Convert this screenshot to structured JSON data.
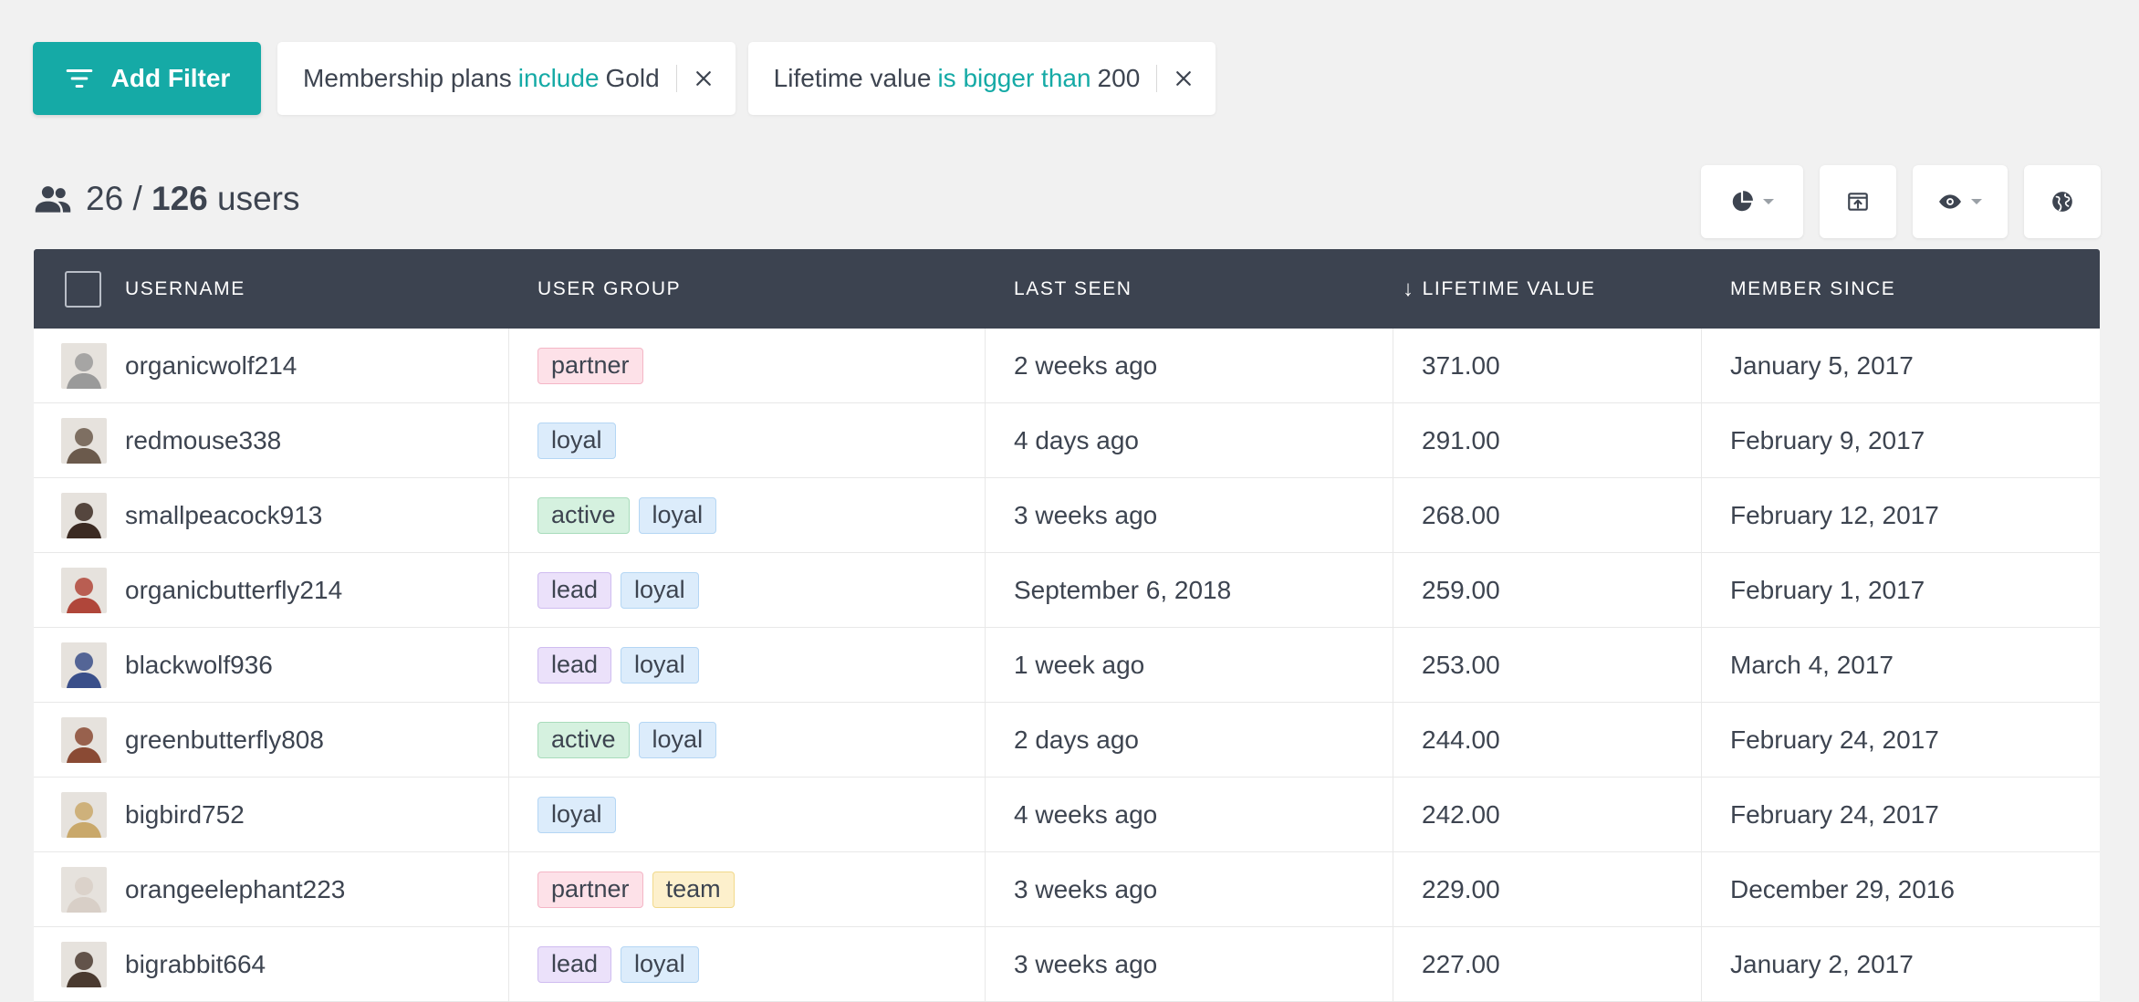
{
  "filters": {
    "add_filter_label": "Add Filter",
    "chips": [
      {
        "field": "Membership plans",
        "operator": "include",
        "value": "Gold"
      },
      {
        "field": "Lifetime value",
        "operator": "is bigger than",
        "value": "200"
      }
    ]
  },
  "summary": {
    "shown": "26",
    "slash": "/",
    "total": "126",
    "unit": "users"
  },
  "toolbar": {
    "icons": [
      "pie-chart-icon",
      "export-icon",
      "eye-icon",
      "globe-icon"
    ]
  },
  "table": {
    "columns": {
      "username": "Username",
      "user_group": "User Group",
      "last_seen": "Last Seen",
      "lifetime_value": "Lifetime Value",
      "lifetime_value_sort": "↓",
      "member_since": "Member Since"
    },
    "rows": [
      {
        "username": "organicwolf214",
        "groups": [
          "partner"
        ],
        "last_seen": "2 weeks ago",
        "lifetime_value": "371.00",
        "member_since": "January 5, 2017",
        "avatar_color": "#9a9a9a"
      },
      {
        "username": "redmouse338",
        "groups": [
          "loyal"
        ],
        "last_seen": "4 days ago",
        "lifetime_value": "291.00",
        "member_since": "February 9, 2017",
        "avatar_color": "#6b5a4c"
      },
      {
        "username": "smallpeacock913",
        "groups": [
          "active",
          "loyal"
        ],
        "last_seen": "3 weeks ago",
        "lifetime_value": "268.00",
        "member_since": "February 12, 2017",
        "avatar_color": "#3b2a22"
      },
      {
        "username": "organicbutterfly214",
        "groups": [
          "lead",
          "loyal"
        ],
        "last_seen": "September 6, 2018",
        "lifetime_value": "259.00",
        "member_since": "February 1, 2017",
        "avatar_color": "#b0463a"
      },
      {
        "username": "blackwolf936",
        "groups": [
          "lead",
          "loyal"
        ],
        "last_seen": "1 week ago",
        "lifetime_value": "253.00",
        "member_since": "March 4, 2017",
        "avatar_color": "#3a4f8a"
      },
      {
        "username": "greenbutterfly808",
        "groups": [
          "active",
          "loyal"
        ],
        "last_seen": "2 days ago",
        "lifetime_value": "244.00",
        "member_since": "February 24, 2017",
        "avatar_color": "#8a4a34"
      },
      {
        "username": "bigbird752",
        "groups": [
          "loyal"
        ],
        "last_seen": "4 weeks ago",
        "lifetime_value": "242.00",
        "member_since": "February 24, 2017",
        "avatar_color": "#c9a86a"
      },
      {
        "username": "orangeelephant223",
        "groups": [
          "partner",
          "team"
        ],
        "last_seen": "3 weeks ago",
        "lifetime_value": "229.00",
        "member_since": "December 29, 2016",
        "avatar_color": "#d8cfc7"
      },
      {
        "username": "bigrabbit664",
        "groups": [
          "lead",
          "loyal"
        ],
        "last_seen": "3 weeks ago",
        "lifetime_value": "227.00",
        "member_since": "January 2, 2017",
        "avatar_color": "#4a3a30"
      }
    ]
  },
  "colors": {
    "accent": "#15aaa6",
    "header_bg": "#3c4350",
    "page_bg": "#f1f1f1",
    "tag_partner": "#fde1e8",
    "tag_loyal": "#dcecfb",
    "tag_active": "#d5f1df",
    "tag_lead": "#ebe1fa",
    "tag_team": "#fdf0cc"
  }
}
